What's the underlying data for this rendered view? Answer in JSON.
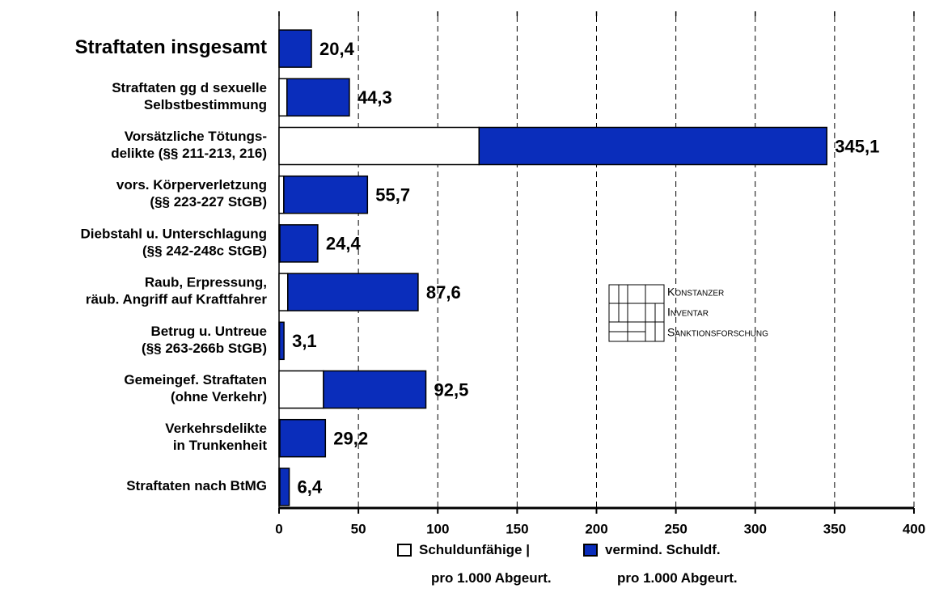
{
  "chart_data": {
    "type": "stacked-barh",
    "categories": [
      [
        "Straftaten insgesamt"
      ],
      [
        "Straftaten gg d sexuelle",
        "Selbstbestimmung"
      ],
      [
        "Vorsätzliche Tötungs-",
        "delikte (§§ 211-213, 216)"
      ],
      [
        "vors. Körperverletzung",
        "(§§ 223-227 StGB)"
      ],
      [
        "Diebstahl u. Unterschlagung",
        "(§§ 242-248c StGB)"
      ],
      [
        "Raub, Erpressung,",
        "räub. Angriff auf Kraftfahrer"
      ],
      [
        "Betrug u. Untreue",
        "(§§ 263-266b StGB)"
      ],
      [
        "Gemeingef. Straftaten",
        "(ohne Verkehr)"
      ],
      [
        "Verkehrsdelikte",
        "in Trunkenheit"
      ],
      [
        "Straftaten nach BtMG"
      ]
    ],
    "series": [
      {
        "name": [
          "Schuldunfähige |",
          "pro 1.000 Abgeurt."
        ],
        "color": "#ffffff",
        "values": [
          0,
          5,
          126,
          3,
          0.5,
          5.5,
          0.3,
          28,
          0.5,
          0.5
        ]
      },
      {
        "name": [
          "vermind. Schuldf.",
          "pro 1.000 Abgeurt."
        ],
        "color": "#0a2dbb",
        "values": [
          20.4,
          39.3,
          219.1,
          52.7,
          23.9,
          82.1,
          2.8,
          64.5,
          28.7,
          5.9
        ]
      }
    ],
    "totals": [
      20.4,
      44.3,
      345.1,
      55.7,
      24.4,
      87.6,
      3.1,
      92.5,
      29.2,
      6.4
    ],
    "total_labels": [
      "20,4",
      "44,3",
      "345,1",
      "55,7",
      "24,4",
      "87,6",
      "3,1",
      "92,5",
      "29,2",
      "6,4"
    ],
    "xlim": [
      0,
      400
    ],
    "xticks": [
      0,
      50,
      100,
      150,
      200,
      250,
      300,
      350,
      400
    ],
    "grid": true,
    "logo": [
      "Konstanzer",
      "Inventar",
      "Sanktionsforschung"
    ]
  }
}
